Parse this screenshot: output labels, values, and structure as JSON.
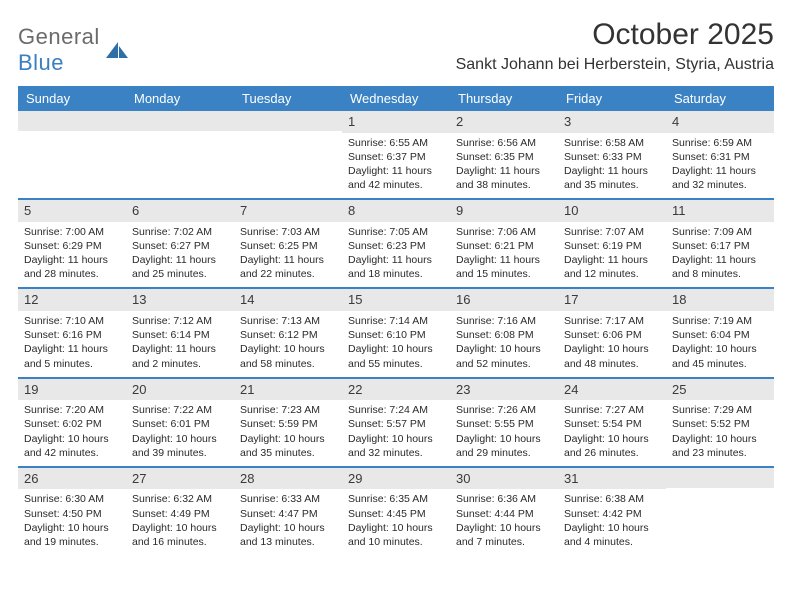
{
  "logo": {
    "general": "General",
    "blue": "Blue"
  },
  "title": "October 2025",
  "location": "Sankt Johann bei Herberstein, Styria, Austria",
  "colors": {
    "header_bg": "#3a82c4",
    "header_text": "#ffffff",
    "daynum_bg": "#e8e8e8",
    "week_divider": "#3a82c4",
    "body_text": "#2a2a2a",
    "logo_gray": "#6b6b6b",
    "logo_blue": "#3a7fbf"
  },
  "dow": [
    "Sunday",
    "Monday",
    "Tuesday",
    "Wednesday",
    "Thursday",
    "Friday",
    "Saturday"
  ],
  "weeks": [
    [
      {
        "n": "",
        "sr": "",
        "ss": "",
        "dl": ""
      },
      {
        "n": "",
        "sr": "",
        "ss": "",
        "dl": ""
      },
      {
        "n": "",
        "sr": "",
        "ss": "",
        "dl": ""
      },
      {
        "n": "1",
        "sr": "6:55 AM",
        "ss": "6:37 PM",
        "dl": "11 hours and 42 minutes."
      },
      {
        "n": "2",
        "sr": "6:56 AM",
        "ss": "6:35 PM",
        "dl": "11 hours and 38 minutes."
      },
      {
        "n": "3",
        "sr": "6:58 AM",
        "ss": "6:33 PM",
        "dl": "11 hours and 35 minutes."
      },
      {
        "n": "4",
        "sr": "6:59 AM",
        "ss": "6:31 PM",
        "dl": "11 hours and 32 minutes."
      }
    ],
    [
      {
        "n": "5",
        "sr": "7:00 AM",
        "ss": "6:29 PM",
        "dl": "11 hours and 28 minutes."
      },
      {
        "n": "6",
        "sr": "7:02 AM",
        "ss": "6:27 PM",
        "dl": "11 hours and 25 minutes."
      },
      {
        "n": "7",
        "sr": "7:03 AM",
        "ss": "6:25 PM",
        "dl": "11 hours and 22 minutes."
      },
      {
        "n": "8",
        "sr": "7:05 AM",
        "ss": "6:23 PM",
        "dl": "11 hours and 18 minutes."
      },
      {
        "n": "9",
        "sr": "7:06 AM",
        "ss": "6:21 PM",
        "dl": "11 hours and 15 minutes."
      },
      {
        "n": "10",
        "sr": "7:07 AM",
        "ss": "6:19 PM",
        "dl": "11 hours and 12 minutes."
      },
      {
        "n": "11",
        "sr": "7:09 AM",
        "ss": "6:17 PM",
        "dl": "11 hours and 8 minutes."
      }
    ],
    [
      {
        "n": "12",
        "sr": "7:10 AM",
        "ss": "6:16 PM",
        "dl": "11 hours and 5 minutes."
      },
      {
        "n": "13",
        "sr": "7:12 AM",
        "ss": "6:14 PM",
        "dl": "11 hours and 2 minutes."
      },
      {
        "n": "14",
        "sr": "7:13 AM",
        "ss": "6:12 PM",
        "dl": "10 hours and 58 minutes."
      },
      {
        "n": "15",
        "sr": "7:14 AM",
        "ss": "6:10 PM",
        "dl": "10 hours and 55 minutes."
      },
      {
        "n": "16",
        "sr": "7:16 AM",
        "ss": "6:08 PM",
        "dl": "10 hours and 52 minutes."
      },
      {
        "n": "17",
        "sr": "7:17 AM",
        "ss": "6:06 PM",
        "dl": "10 hours and 48 minutes."
      },
      {
        "n": "18",
        "sr": "7:19 AM",
        "ss": "6:04 PM",
        "dl": "10 hours and 45 minutes."
      }
    ],
    [
      {
        "n": "19",
        "sr": "7:20 AM",
        "ss": "6:02 PM",
        "dl": "10 hours and 42 minutes."
      },
      {
        "n": "20",
        "sr": "7:22 AM",
        "ss": "6:01 PM",
        "dl": "10 hours and 39 minutes."
      },
      {
        "n": "21",
        "sr": "7:23 AM",
        "ss": "5:59 PM",
        "dl": "10 hours and 35 minutes."
      },
      {
        "n": "22",
        "sr": "7:24 AM",
        "ss": "5:57 PM",
        "dl": "10 hours and 32 minutes."
      },
      {
        "n": "23",
        "sr": "7:26 AM",
        "ss": "5:55 PM",
        "dl": "10 hours and 29 minutes."
      },
      {
        "n": "24",
        "sr": "7:27 AM",
        "ss": "5:54 PM",
        "dl": "10 hours and 26 minutes."
      },
      {
        "n": "25",
        "sr": "7:29 AM",
        "ss": "5:52 PM",
        "dl": "10 hours and 23 minutes."
      }
    ],
    [
      {
        "n": "26",
        "sr": "6:30 AM",
        "ss": "4:50 PM",
        "dl": "10 hours and 19 minutes."
      },
      {
        "n": "27",
        "sr": "6:32 AM",
        "ss": "4:49 PM",
        "dl": "10 hours and 16 minutes."
      },
      {
        "n": "28",
        "sr": "6:33 AM",
        "ss": "4:47 PM",
        "dl": "10 hours and 13 minutes."
      },
      {
        "n": "29",
        "sr": "6:35 AM",
        "ss": "4:45 PM",
        "dl": "10 hours and 10 minutes."
      },
      {
        "n": "30",
        "sr": "6:36 AM",
        "ss": "4:44 PM",
        "dl": "10 hours and 7 minutes."
      },
      {
        "n": "31",
        "sr": "6:38 AM",
        "ss": "4:42 PM",
        "dl": "10 hours and 4 minutes."
      },
      {
        "n": "",
        "sr": "",
        "ss": "",
        "dl": ""
      }
    ]
  ],
  "labels": {
    "sunrise": "Sunrise:",
    "sunset": "Sunset:",
    "daylight": "Daylight:"
  }
}
